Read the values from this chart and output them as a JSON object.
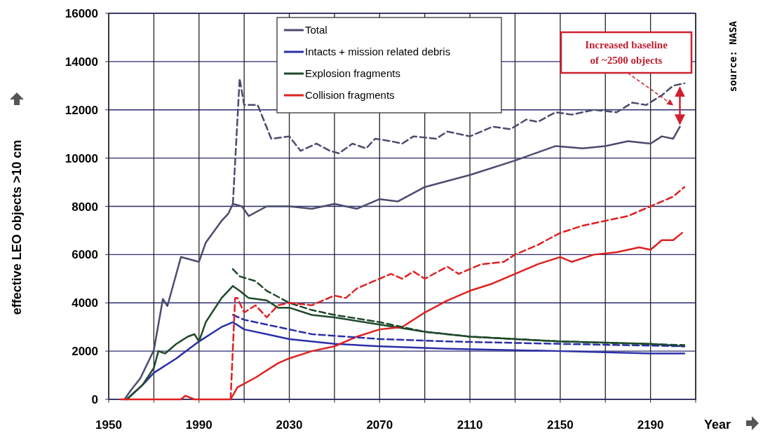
{
  "chart_data": {
    "type": "line",
    "xlabel": "Year",
    "ylabel": "effective LEO objects >10 cm",
    "xlim": [
      1950,
      2210
    ],
    "ylim": [
      0,
      16000
    ],
    "xticks": [
      1950,
      {
        "value": 1970,
        "label": null
      },
      1990,
      {
        "value": 2010,
        "label": null
      },
      2030,
      {
        "value": 2050,
        "label": null
      },
      2070,
      {
        "value": 2090,
        "label": null
      },
      2110,
      {
        "value": 2130,
        "label": null
      },
      2150,
      {
        "value": 2170,
        "label": null
      },
      2190,
      {
        "value": 2210,
        "label": null
      }
    ],
    "yticks": [
      0,
      2000,
      4000,
      6000,
      8000,
      10000,
      12000,
      14000,
      16000
    ],
    "grid": true,
    "legend": "top",
    "marker": "none",
    "annotations": [
      "Increased baseline of ~2500 objects",
      "source: NASA"
    ],
    "series": [
      {
        "name": "Total",
        "color": "#4b4b6e",
        "line_style": "solid",
        "x": [
          1957,
          1960,
          1964,
          1970,
          1974,
          1976,
          1982,
          1990,
          1993,
          2000,
          2003,
          2005,
          2009,
          2012,
          2020,
          2030,
          2040,
          2050,
          2060,
          2070,
          2078,
          2090,
          2110,
          2130,
          2148,
          2160,
          2170,
          2180,
          2190,
          2195,
          2200,
          2203
        ],
        "values": [
          0,
          400,
          870,
          2040,
          4160,
          3870,
          5900,
          5700,
          6500,
          7400,
          7700,
          8100,
          8000,
          7600,
          8000,
          8000,
          7900,
          8100,
          7900,
          8300,
          8200,
          8800,
          9300,
          9900,
          10500,
          10400,
          10500,
          10700,
          10600,
          10900,
          10800,
          11300
        ]
      },
      {
        "name": "Intacts + mission related debris",
        "color": "#2b2fa8",
        "line_style": "solid",
        "x": [
          1958,
          1965,
          1970,
          1980,
          1990,
          2000,
          2005,
          2010,
          2020,
          2030,
          2050,
          2070,
          2100,
          2150,
          2190,
          2205
        ],
        "values": [
          0,
          600,
          1100,
          1700,
          2400,
          3000,
          3200,
          2900,
          2700,
          2500,
          2300,
          2200,
          2100,
          2000,
          1900,
          1900
        ]
      },
      {
        "name": "Explosion fragments",
        "color": "#1f4a2a",
        "line_style": "solid",
        "x": [
          1958,
          1965,
          1970,
          1972,
          1975,
          1980,
          1985,
          1988,
          1990,
          1993,
          2000,
          2005,
          2008,
          2012,
          2020,
          2025,
          2030,
          2040,
          2050,
          2070,
          2090,
          2110,
          2150,
          2190,
          2205
        ],
        "values": [
          0,
          600,
          1300,
          2000,
          1900,
          2300,
          2600,
          2700,
          2400,
          3200,
          4200,
          4700,
          4500,
          4200,
          4100,
          3800,
          3800,
          3500,
          3400,
          3100,
          2800,
          2600,
          2400,
          2300,
          2200
        ]
      },
      {
        "name": "Collision fragments",
        "color": "#e02020",
        "line_style": "solid",
        "x": [
          1955,
          1982,
          1984,
          1988,
          2004,
          2007,
          2015,
          2025,
          2030,
          2040,
          2050,
          2060,
          2070,
          2080,
          2090,
          2100,
          2110,
          2120,
          2130,
          2140,
          2150,
          2155,
          2165,
          2175,
          2185,
          2190,
          2195,
          2200,
          2204
        ],
        "values": [
          0,
          0,
          150,
          0,
          0,
          500,
          900,
          1500,
          1700,
          2000,
          2200,
          2600,
          2900,
          3000,
          3600,
          4100,
          4500,
          4800,
          5200,
          5600,
          5900,
          5700,
          6000,
          6100,
          6300,
          6200,
          6600,
          6600,
          6900
        ]
      },
      {
        "color": "#4b4b6e",
        "line_style": "dashed",
        "x": [
          2005,
          2008,
          2010,
          2016,
          2022,
          2030,
          2035,
          2042,
          2048,
          2052,
          2058,
          2064,
          2068,
          2075,
          2080,
          2085,
          2095,
          2100,
          2110,
          2120,
          2128,
          2135,
          2140,
          2148,
          2155,
          2165,
          2175,
          2182,
          2188,
          2195,
          2200,
          2205
        ],
        "values": [
          8100,
          13300,
          12200,
          12200,
          10800,
          10900,
          10300,
          10600,
          10300,
          10200,
          10600,
          10400,
          10800,
          10700,
          10600,
          10900,
          10800,
          11100,
          10900,
          11300,
          11200,
          11600,
          11500,
          11900,
          11800,
          12000,
          11900,
          12300,
          12200,
          12600,
          13000,
          13100
        ]
      },
      {
        "color": "#2b2fa8",
        "line_style": "dashed",
        "x": [
          2005,
          2010,
          2020,
          2040,
          2070,
          2100,
          2150,
          2205
        ],
        "values": [
          3500,
          3300,
          3100,
          2700,
          2500,
          2400,
          2300,
          2200
        ]
      },
      {
        "color": "#1f4a2a",
        "line_style": "dashed",
        "x": [
          2005,
          2008,
          2015,
          2020,
          2030,
          2040,
          2050,
          2070,
          2090,
          2110,
          2150,
          2205
        ],
        "values": [
          5400,
          5100,
          4900,
          4500,
          4000,
          3700,
          3500,
          3200,
          2800,
          2600,
          2400,
          2250
        ]
      },
      {
        "color": "#e02020",
        "line_style": "dashed",
        "x": [
          2004,
          2006,
          2007,
          2010,
          2015,
          2020,
          2025,
          2030,
          2040,
          2050,
          2055,
          2060,
          2070,
          2075,
          2080,
          2085,
          2090,
          2100,
          2105,
          2115,
          2125,
          2130,
          2140,
          2150,
          2160,
          2170,
          2180,
          2190,
          2200,
          2205
        ],
        "values": [
          0,
          4200,
          4200,
          3600,
          3900,
          3400,
          3900,
          4000,
          3900,
          4300,
          4200,
          4600,
          5000,
          5200,
          5000,
          5300,
          5000,
          5500,
          5200,
          5600,
          5700,
          6000,
          6400,
          6900,
          7200,
          7400,
          7600,
          8000,
          8400,
          8800
        ]
      }
    ]
  }
}
